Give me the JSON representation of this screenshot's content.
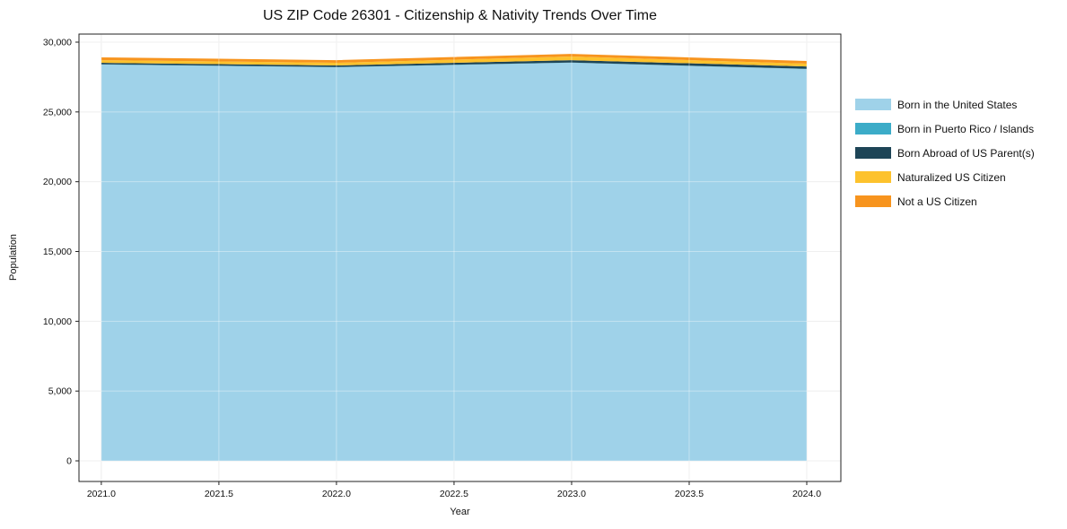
{
  "figure": {
    "title": "US ZIP Code 26301 - Citizenship & Nativity Trends Over Time"
  },
  "chart_data": {
    "type": "area",
    "stacked": true,
    "title": "US ZIP Code 26301 - Citizenship & Nativity Trends Over Time",
    "xlabel": "Year",
    "ylabel": "Population",
    "x": [
      2021,
      2022,
      2023,
      2024
    ],
    "series": [
      {
        "name": "Born in the United States",
        "color": "#9fd2e9",
        "values": [
          28390,
          28200,
          28520,
          28070
        ]
      },
      {
        "name": "Born in Puerto Rico / Islands",
        "color": "#3cacc8",
        "values": [
          20,
          20,
          20,
          20
        ]
      },
      {
        "name": "Born Abroad of US Parent(s)",
        "color": "#1e4557",
        "values": [
          110,
          110,
          170,
          170
        ]
      },
      {
        "name": "Naturalized US Citizen",
        "color": "#fdc22d",
        "values": [
          190,
          190,
          260,
          200
        ]
      },
      {
        "name": "Not a US Citizen",
        "color": "#f7941e",
        "values": [
          200,
          190,
          190,
          190
        ]
      }
    ],
    "xticks": [
      2021.0,
      2021.5,
      2022.0,
      2022.5,
      2023.0,
      2023.5,
      2024.0
    ],
    "yticks": [
      0,
      5000,
      10000,
      15000,
      20000,
      25000,
      30000
    ],
    "x_tick_labels": [
      "2021.0",
      "2021.5",
      "2022.0",
      "2022.5",
      "2023.0",
      "2023.5",
      "2024.0"
    ],
    "y_tick_labels": [
      "0",
      "5,000",
      "10,000",
      "15,000",
      "20,000",
      "25,000",
      "30,000"
    ],
    "xlim": [
      2020.905,
      2024.145
    ],
    "ylim": [
      -1477,
      30578
    ],
    "grid": true,
    "legend_position": "right"
  },
  "colors": {
    "grid": "#e6e6e6",
    "spine": "#222222",
    "grid_overlay": "rgba(255,255,255,0.38)"
  }
}
